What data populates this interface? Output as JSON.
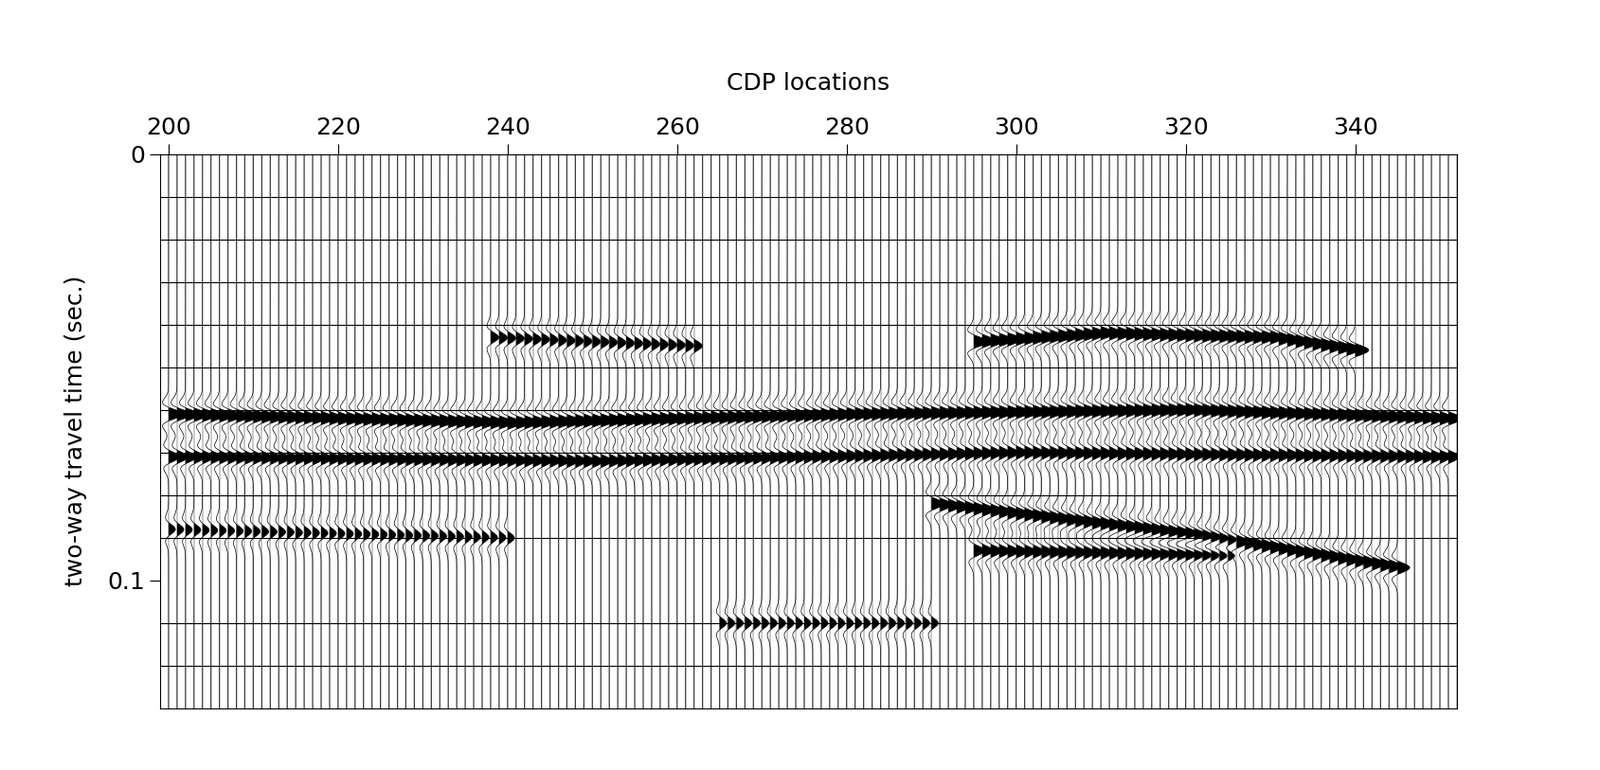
{
  "chart_data": {
    "type": "seismic_section",
    "title": "CDP locations",
    "y_label": "two-way travel time (sec.)",
    "xlim": [
      199,
      352
    ],
    "xticks": [
      200,
      220,
      240,
      260,
      280,
      300,
      320,
      340
    ],
    "ylim": [
      0.13,
      0
    ],
    "yticks": [
      0,
      0.1
    ],
    "time_lines": [
      0.01,
      0.02,
      0.03,
      0.04,
      0.05,
      0.06,
      0.07,
      0.08,
      0.09,
      0.11,
      0.12
    ],
    "color": "#000000",
    "reflectors": [
      {
        "cdp": [
          238,
          262
        ],
        "time": [
          0.043,
          0.045
        ],
        "amplitude": 0.6
      },
      {
        "cdp": [
          295,
          310,
          330,
          340
        ],
        "time": [
          0.044,
          0.042,
          0.043,
          0.046
        ],
        "amplitude": 1.0
      },
      {
        "cdp": [
          200,
          240,
          280,
          320,
          351
        ],
        "time": [
          0.061,
          0.063,
          0.061,
          0.06,
          0.062
        ],
        "amplitude": 1.0
      },
      {
        "cdp": [
          200,
          250,
          300,
          351
        ],
        "time": [
          0.071,
          0.072,
          0.07,
          0.071
        ],
        "amplitude": 0.8
      },
      {
        "cdp": [
          290,
          320,
          345
        ],
        "time": [
          0.082,
          0.089,
          0.097
        ],
        "amplitude": 0.9
      },
      {
        "cdp": [
          295,
          325
        ],
        "time": [
          0.093,
          0.094
        ],
        "amplitude": 0.8
      },
      {
        "cdp": [
          200,
          240
        ],
        "time": [
          0.088,
          0.09
        ],
        "amplitude": 0.5
      },
      {
        "cdp": [
          265,
          290
        ],
        "time": [
          0.11,
          0.11
        ],
        "amplitude": 0.5
      }
    ]
  }
}
